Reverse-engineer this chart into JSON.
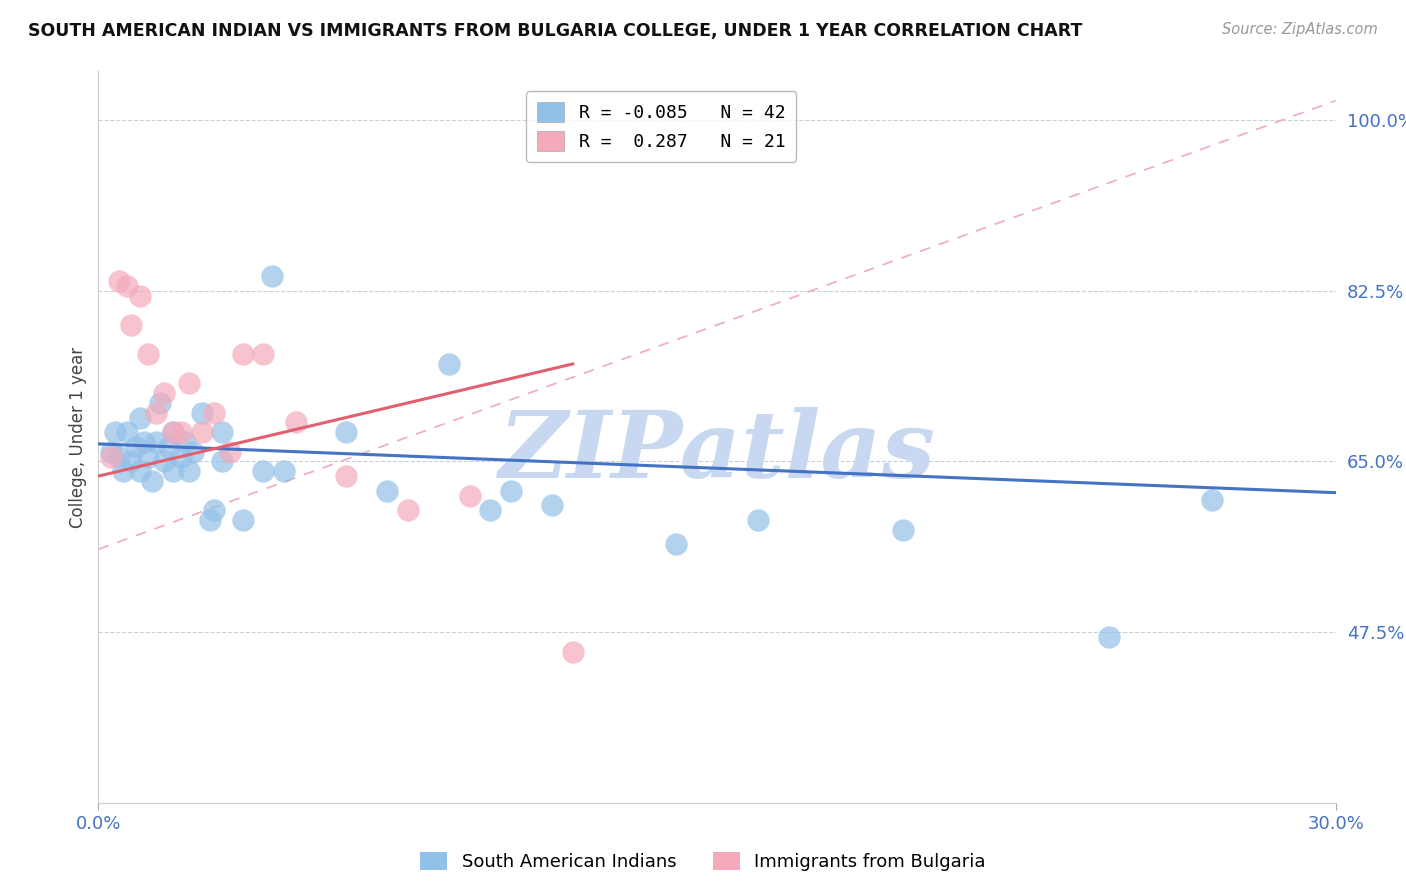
{
  "title": "SOUTH AMERICAN INDIAN VS IMMIGRANTS FROM BULGARIA COLLEGE, UNDER 1 YEAR CORRELATION CHART",
  "source_text": "Source: ZipAtlas.com",
  "ylabel": "College, Under 1 year",
  "xlabel": "",
  "xmin": 0.0,
  "xmax": 0.3,
  "ymin": 0.3,
  "ymax": 1.05,
  "yticks": [
    0.475,
    0.65,
    0.825,
    1.0
  ],
  "ytick_labels": [
    "47.5%",
    "65.0%",
    "82.5%",
    "100.0%"
  ],
  "xtick_vals": [
    0.0,
    0.3
  ],
  "xtick_labels": [
    "0.0%",
    "30.0%"
  ],
  "legend_r1": "R = -0.085",
  "legend_n1": "N = 42",
  "legend_r2": "R =  0.287",
  "legend_n2": "N = 21",
  "blue_color": "#92C0E8",
  "pink_color": "#F4AABB",
  "blue_line_color": "#4472C4",
  "pink_line_color": "#E06070",
  "pink_dash_color": "#F0B0C0",
  "watermark_text": "ZIPatlas",
  "watermark_color": "#C8D8F0",
  "blue_scatter_x": [
    0.003,
    0.004,
    0.005,
    0.006,
    0.007,
    0.008,
    0.009,
    0.01,
    0.01,
    0.011,
    0.012,
    0.013,
    0.014,
    0.015,
    0.016,
    0.017,
    0.018,
    0.018,
    0.02,
    0.021,
    0.022,
    0.023,
    0.025,
    0.027,
    0.028,
    0.03,
    0.03,
    0.035,
    0.04,
    0.042,
    0.045,
    0.06,
    0.07,
    0.085,
    0.095,
    0.1,
    0.11,
    0.14,
    0.16,
    0.195,
    0.245,
    0.27
  ],
  "blue_scatter_y": [
    0.66,
    0.68,
    0.655,
    0.64,
    0.68,
    0.65,
    0.665,
    0.695,
    0.64,
    0.67,
    0.655,
    0.63,
    0.67,
    0.71,
    0.65,
    0.665,
    0.68,
    0.64,
    0.655,
    0.67,
    0.64,
    0.66,
    0.7,
    0.59,
    0.6,
    0.65,
    0.68,
    0.59,
    0.64,
    0.84,
    0.64,
    0.68,
    0.62,
    0.75,
    0.6,
    0.62,
    0.605,
    0.565,
    0.59,
    0.58,
    0.47,
    0.61
  ],
  "pink_scatter_x": [
    0.003,
    0.005,
    0.007,
    0.008,
    0.01,
    0.012,
    0.014,
    0.016,
    0.018,
    0.02,
    0.022,
    0.025,
    0.028,
    0.032,
    0.035,
    0.04,
    0.048,
    0.06,
    0.075,
    0.09,
    0.115
  ],
  "pink_scatter_y": [
    0.655,
    0.835,
    0.83,
    0.79,
    0.82,
    0.76,
    0.7,
    0.72,
    0.68,
    0.68,
    0.73,
    0.68,
    0.7,
    0.66,
    0.76,
    0.76,
    0.69,
    0.635,
    0.6,
    0.615,
    0.455
  ],
  "blue_trendline_x": [
    0.0,
    0.3
  ],
  "blue_trendline_y": [
    0.668,
    0.618
  ],
  "pink_trendline_x": [
    0.0,
    0.115
  ],
  "pink_trendline_y": [
    0.635,
    0.75
  ],
  "pink_dash_line_x": [
    0.0,
    0.3
  ],
  "pink_dash_line_y": [
    0.56,
    1.02
  ],
  "bottom_legend_labels": [
    "South American Indians",
    "Immigrants from Bulgaria"
  ]
}
